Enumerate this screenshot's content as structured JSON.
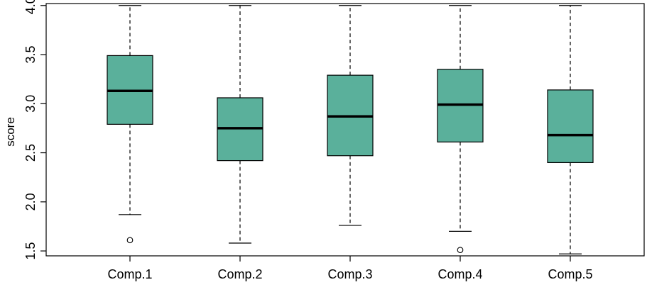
{
  "chart_data": {
    "type": "box",
    "ylabel": "score",
    "ylim": [
      1.45,
      4.02
    ],
    "yticks": [
      "1.5",
      "2.0",
      "2.5",
      "3.0",
      "3.5",
      "4.0"
    ],
    "grid": false,
    "box_color": "#5ab09b",
    "categories": [
      "Comp.1",
      "Comp.2",
      "Comp.3",
      "Comp.4",
      "Comp.5"
    ],
    "boxes": [
      {
        "whisker_low": 1.87,
        "q1": 2.79,
        "median": 3.13,
        "q3": 3.49,
        "whisker_high": 4.0,
        "outliers": [
          1.61
        ]
      },
      {
        "whisker_low": 1.58,
        "q1": 2.42,
        "median": 2.75,
        "q3": 3.06,
        "whisker_high": 4.0,
        "outliers": []
      },
      {
        "whisker_low": 1.76,
        "q1": 2.47,
        "median": 2.87,
        "q3": 3.29,
        "whisker_high": 4.0,
        "outliers": []
      },
      {
        "whisker_low": 1.7,
        "q1": 2.61,
        "median": 2.99,
        "q3": 3.35,
        "whisker_high": 4.0,
        "outliers": [
          1.51
        ]
      },
      {
        "whisker_low": 1.47,
        "q1": 2.4,
        "median": 2.68,
        "q3": 3.14,
        "whisker_high": 4.0,
        "outliers": []
      }
    ]
  }
}
